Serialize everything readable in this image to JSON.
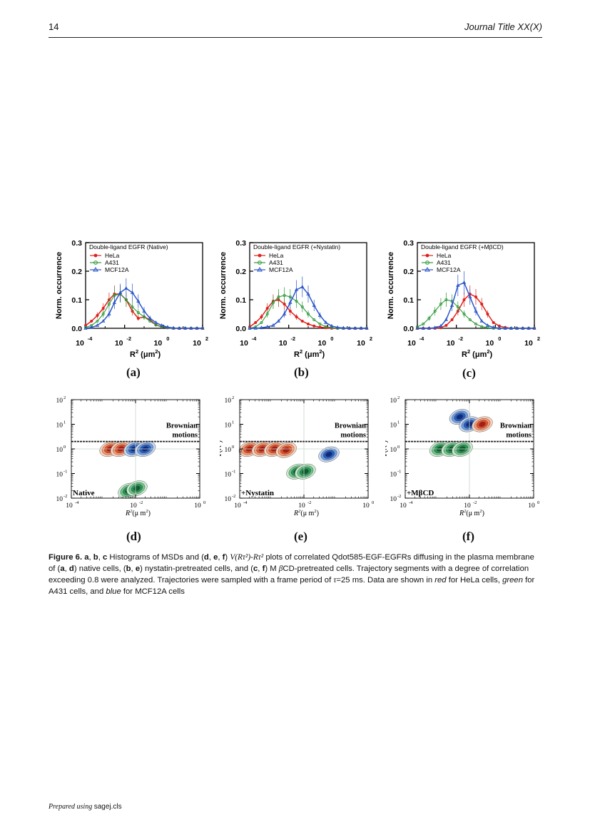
{
  "header": {
    "page_number": "14",
    "journal": "Journal Title XX(X)"
  },
  "footer": {
    "prepared": "Prepared using",
    "cls": "sagej.cls"
  },
  "colors": {
    "hela": "#e0201c",
    "a431": "#2f9a3a",
    "mcf12a": "#2a55c8"
  },
  "histograms": {
    "ylabel": "Norm. occurrence",
    "xlabel_main": "R",
    "xlabel_unit": "(μm",
    "yticks": [
      "0.0",
      "0.1",
      "0.2",
      "0.3"
    ],
    "xtick_base": "10",
    "xtick_exps": [
      "-4",
      "-2",
      "0",
      "2"
    ],
    "legend_labels": [
      "HeLa",
      "A431",
      "MCF12A"
    ]
  },
  "density": {
    "ylabel": "V(R",
    "xlabel": "R",
    "xlabel_unit": "(μ m",
    "ytick_exps": [
      "2",
      "1",
      "0",
      "-1",
      "-2"
    ],
    "xtick_exps": [
      "-4",
      "-2",
      "0"
    ],
    "tick_base": "10",
    "brownian_1": "Brownian",
    "brownian_2": "motions"
  },
  "chart_data": [
    {
      "type": "line",
      "panel": "a",
      "title": "Double-ligand EGFR (Native)",
      "xlabel": "R2 (μm2)",
      "ylabel": "Norm. occurrence",
      "xscale": "log",
      "xlim": [
        0.0001,
        100
      ],
      "ylim": [
        0,
        0.3
      ],
      "series": [
        {
          "name": "HeLa",
          "x": [
            0.0001,
            0.0002,
            0.0004,
            0.0008,
            0.0016,
            0.003,
            0.006,
            0.012,
            0.025,
            0.05,
            0.1,
            0.2,
            0.4,
            0.8,
            1.6,
            3.2,
            6.4,
            12.8,
            25.6,
            51.2,
            100
          ],
          "y": [
            0.01,
            0.025,
            0.045,
            0.07,
            0.1,
            0.12,
            0.12,
            0.1,
            0.06,
            0.035,
            0.04,
            0.03,
            0.012,
            0.005,
            0.002,
            0,
            0,
            0,
            0,
            0,
            0
          ]
        },
        {
          "name": "A431",
          "x": [
            0.0001,
            0.0002,
            0.0004,
            0.0008,
            0.0016,
            0.003,
            0.006,
            0.012,
            0.025,
            0.05,
            0.1,
            0.2,
            0.4,
            0.8,
            1.6,
            3.2,
            6.4,
            12.8,
            25.6,
            51.2,
            100
          ],
          "y": [
            0.003,
            0.01,
            0.025,
            0.05,
            0.085,
            0.115,
            0.12,
            0.1,
            0.075,
            0.055,
            0.04,
            0.025,
            0.012,
            0.005,
            0.002,
            0,
            0,
            0,
            0,
            0,
            0
          ]
        },
        {
          "name": "MCF12A",
          "x": [
            0.0001,
            0.0002,
            0.0004,
            0.0008,
            0.0016,
            0.003,
            0.006,
            0.012,
            0.025,
            0.05,
            0.1,
            0.2,
            0.4,
            0.8,
            1.6,
            3.2,
            6.4,
            12.8,
            25.6,
            51.2,
            100
          ],
          "y": [
            0,
            0.003,
            0.01,
            0.025,
            0.05,
            0.09,
            0.125,
            0.14,
            0.125,
            0.095,
            0.06,
            0.035,
            0.02,
            0.01,
            0.004,
            0.001,
            0,
            0,
            0,
            0,
            0
          ]
        }
      ]
    },
    {
      "type": "line",
      "panel": "b",
      "title": "Double-ligand EGFR (+Nystatin)",
      "xlabel": "R2 (μm2)",
      "ylabel": "Norm. occurrence",
      "xscale": "log",
      "xlim": [
        0.0001,
        100
      ],
      "ylim": [
        0,
        0.3
      ],
      "series": [
        {
          "name": "HeLa",
          "x": [
            0.0001,
            0.0002,
            0.0004,
            0.0008,
            0.0016,
            0.003,
            0.006,
            0.012,
            0.025,
            0.05,
            0.1,
            0.2,
            0.4,
            0.8,
            1.6,
            3.2,
            6.4,
            12.8,
            25.6,
            51.2,
            100
          ],
          "y": [
            0.005,
            0.02,
            0.04,
            0.07,
            0.095,
            0.1,
            0.085,
            0.06,
            0.04,
            0.025,
            0.015,
            0.008,
            0.004,
            0.002,
            0,
            0,
            0,
            0,
            0,
            0,
            0
          ]
        },
        {
          "name": "A431",
          "x": [
            0.0001,
            0.0002,
            0.0004,
            0.0008,
            0.0016,
            0.003,
            0.006,
            0.012,
            0.025,
            0.05,
            0.1,
            0.2,
            0.4,
            0.8,
            1.6,
            3.2,
            6.4,
            12.8,
            25.6,
            51.2,
            100
          ],
          "y": [
            0,
            0.005,
            0.02,
            0.05,
            0.09,
            0.11,
            0.115,
            0.11,
            0.095,
            0.075,
            0.05,
            0.03,
            0.015,
            0.006,
            0.002,
            0,
            0,
            0,
            0,
            0,
            0
          ]
        },
        {
          "name": "MCF12A",
          "x": [
            0.0001,
            0.0002,
            0.0004,
            0.0008,
            0.0016,
            0.003,
            0.006,
            0.012,
            0.025,
            0.05,
            0.1,
            0.2,
            0.4,
            0.8,
            1.6,
            3.2,
            6.4,
            12.8,
            25.6,
            51.2,
            100
          ],
          "y": [
            0,
            0,
            0.002,
            0.005,
            0.01,
            0.025,
            0.05,
            0.09,
            0.135,
            0.145,
            0.12,
            0.08,
            0.045,
            0.02,
            0.008,
            0.003,
            0.001,
            0,
            0,
            0,
            0
          ]
        }
      ]
    },
    {
      "type": "line",
      "panel": "c",
      "title": "Double-ligand EGFR (+MβCD)",
      "xlabel": "R2 (μm2)",
      "ylabel": "Norm. occurrence",
      "xscale": "log",
      "xlim": [
        0.0001,
        100
      ],
      "ylim": [
        0,
        0.3
      ],
      "series": [
        {
          "name": "HeLa",
          "x": [
            0.0001,
            0.0002,
            0.0004,
            0.0008,
            0.0016,
            0.003,
            0.006,
            0.012,
            0.025,
            0.05,
            0.1,
            0.2,
            0.4,
            0.8,
            1.6,
            3.2,
            6.4,
            12.8,
            25.6,
            51.2,
            100
          ],
          "y": [
            0,
            0,
            0,
            0,
            0.002,
            0.01,
            0.03,
            0.06,
            0.1,
            0.12,
            0.11,
            0.085,
            0.05,
            0.02,
            0.008,
            0.003,
            0,
            0,
            0,
            0,
            0
          ]
        },
        {
          "name": "A431",
          "x": [
            0.0001,
            0.0002,
            0.0004,
            0.0008,
            0.0016,
            0.003,
            0.006,
            0.012,
            0.025,
            0.05,
            0.1,
            0.2,
            0.4,
            0.8,
            1.6,
            3.2,
            6.4,
            12.8,
            25.6,
            51.2,
            100
          ],
          "y": [
            0.005,
            0.015,
            0.035,
            0.06,
            0.085,
            0.1,
            0.095,
            0.075,
            0.05,
            0.03,
            0.015,
            0.006,
            0.002,
            0,
            0,
            0,
            0,
            0,
            0,
            0,
            0
          ]
        },
        {
          "name": "MCF12A",
          "x": [
            0.0001,
            0.0002,
            0.0004,
            0.0008,
            0.0016,
            0.003,
            0.006,
            0.012,
            0.025,
            0.05,
            0.1,
            0.2,
            0.4,
            0.8,
            1.6,
            3.2,
            6.4,
            12.8,
            25.6,
            51.2,
            100
          ],
          "y": [
            0,
            0,
            0,
            0.002,
            0.008,
            0.03,
            0.08,
            0.15,
            0.16,
            0.11,
            0.06,
            0.025,
            0.01,
            0.003,
            0,
            0,
            0,
            0,
            0,
            0,
            0
          ]
        }
      ]
    },
    {
      "type": "heatmap",
      "panel": "d",
      "annotation": "Native",
      "xlabel": "R2(μ m2)",
      "ylabel": "V(R2)",
      "xscale": "log",
      "yscale": "log",
      "xlim": [
        0.0001,
        1
      ],
      "ylim": [
        0.01,
        100
      ],
      "brownian_level": 2,
      "blobs": [
        {
          "cell": "HeLa",
          "x": 0.0016,
          "y": 1.0
        },
        {
          "cell": "HeLa",
          "x": 0.0035,
          "y": 1.0
        },
        {
          "cell": "MCF12A",
          "x": 0.009,
          "y": 1.0
        },
        {
          "cell": "MCF12A",
          "x": 0.02,
          "y": 1.0
        },
        {
          "cell": "A431",
          "x": 0.006,
          "y": 0.02
        },
        {
          "cell": "A431",
          "x": 0.011,
          "y": 0.025
        }
      ]
    },
    {
      "type": "heatmap",
      "panel": "e",
      "annotation": "+Nystatin",
      "xlabel": "R2(μ m2)",
      "ylabel": "V(R2)",
      "xscale": "log",
      "yscale": "log",
      "xlim": [
        0.0001,
        1
      ],
      "ylim": [
        0.01,
        100
      ],
      "brownian_level": 2,
      "blobs": [
        {
          "cell": "HeLa",
          "x": 0.0002,
          "y": 1.0
        },
        {
          "cell": "HeLa",
          "x": 0.0005,
          "y": 1.0
        },
        {
          "cell": "HeLa",
          "x": 0.0012,
          "y": 1.0
        },
        {
          "cell": "HeLa",
          "x": 0.0028,
          "y": 0.9
        },
        {
          "cell": "A431",
          "x": 0.006,
          "y": 0.12
        },
        {
          "cell": "A431",
          "x": 0.011,
          "y": 0.12
        },
        {
          "cell": "MCF12A",
          "x": 0.06,
          "y": 0.6
        }
      ]
    },
    {
      "type": "heatmap",
      "panel": "f",
      "annotation": "+MβCD",
      "xlabel": "R2(μ m2)",
      "ylabel": "V(R2)",
      "xscale": "log",
      "yscale": "log",
      "xlim": [
        0.0001,
        1
      ],
      "ylim": [
        0.01,
        100
      ],
      "brownian_level": 2,
      "blobs": [
        {
          "cell": "A431",
          "x": 0.0012,
          "y": 1.0
        },
        {
          "cell": "A431",
          "x": 0.0028,
          "y": 1.0
        },
        {
          "cell": "A431",
          "x": 0.006,
          "y": 1.0
        },
        {
          "cell": "MCF12A",
          "x": 0.005,
          "y": 20
        },
        {
          "cell": "MCF12A",
          "x": 0.01,
          "y": 10
        },
        {
          "cell": "HeLa",
          "x": 0.025,
          "y": 10
        }
      ]
    }
  ],
  "sublabels": [
    "(a)",
    "(b)",
    "(c)",
    "(d)",
    "(e)",
    "(f)"
  ],
  "caption": {
    "figure_label": "Figure 6.",
    "p1": " a",
    "c1": ", ",
    "p2": "b",
    "c2": ", ",
    "p3": "c",
    "t1": " Histograms of MSDs and (",
    "p4": "d",
    "c3": ", ",
    "p5": "e",
    "c4": ", ",
    "p6": "f",
    "t2": ") ",
    "math1": "V(Rτ²)-Rτ²",
    "t3": " plots of correlated Qdot585-EGF-EGFRs diffusing in the plasma membrane of (",
    "p7": "a",
    "c5": ", ",
    "p8": "d",
    "t4": ") native cells, (",
    "p9": "b",
    "c6": ", ",
    "p10": "e",
    "t5": ") nystatin-pretreated cells, and (",
    "p11": "c",
    "c7": ", ",
    "p12": "f",
    "t6": ") M ",
    "beta": "β",
    "t7": "CD-pretreated cells. Trajectory segments with a degree of correlation exceeding 0.8 were analyzed. Trajectories were sampled with a frame period of ",
    "tau": "τ",
    "t8": "=25 ms. Data are shown in ",
    "red": "red",
    "t9": " for HeLa cells, ",
    "green": "green",
    "t10": " for A431 cells, and ",
    "blue": "blue",
    "t11": " for MCF12A cells"
  }
}
